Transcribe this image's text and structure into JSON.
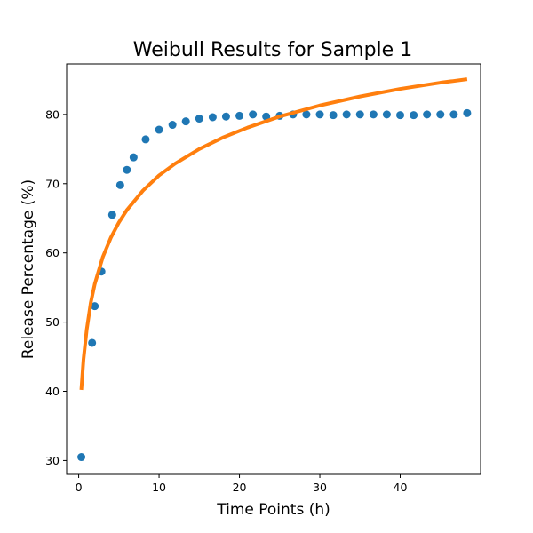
{
  "chart_data": {
    "type": "scatter",
    "title": "Weibull Results for Sample 1",
    "xlabel": "Time Points (h)",
    "ylabel": "Release Percentage (%)",
    "xlim": [
      -1.5,
      50.0
    ],
    "ylim": [
      28.0,
      87.3
    ],
    "xticks": [
      0,
      10,
      20,
      30,
      40
    ],
    "yticks": [
      30,
      40,
      50,
      60,
      70,
      80
    ],
    "grid": false,
    "series": [
      {
        "kind": "points",
        "color": "#1f77b4",
        "x": [
          0.33,
          1.67,
          2.0,
          2.83,
          4.17,
          5.17,
          6.0,
          6.83,
          8.33,
          10.0,
          11.67,
          13.33,
          15.0,
          16.67,
          18.33,
          20.0,
          21.67,
          23.33,
          25.0,
          26.67,
          28.33,
          30.0,
          31.67,
          33.33,
          35.0,
          36.67,
          38.33,
          40.0,
          41.67,
          43.33,
          45.0,
          46.67,
          48.33
        ],
        "y": [
          30.5,
          47.0,
          52.3,
          57.3,
          65.5,
          69.8,
          72.0,
          73.8,
          76.4,
          77.8,
          78.5,
          79.0,
          79.4,
          79.6,
          79.7,
          79.8,
          80.0,
          79.7,
          79.8,
          80.0,
          80.0,
          80.0,
          79.9,
          80.0,
          80.0,
          80.0,
          80.0,
          79.9,
          79.9,
          80.0,
          80.0,
          80.0,
          80.2
        ]
      },
      {
        "kind": "line",
        "color": "#ff7f0e",
        "x": [
          0.33,
          0.6,
          1.0,
          1.5,
          2.0,
          3.0,
          4.0,
          5.0,
          6.0,
          8.0,
          10.0,
          12.0,
          15.0,
          18.0,
          21.0,
          25.0,
          30.0,
          35.0,
          40.0,
          45.0,
          48.33
        ],
        "y": [
          40.2,
          44.6,
          48.9,
          52.8,
          55.5,
          59.4,
          62.2,
          64.4,
          66.2,
          69.0,
          71.2,
          72.9,
          75.0,
          76.7,
          78.1,
          79.7,
          81.3,
          82.6,
          83.7,
          84.6,
          85.1
        ]
      }
    ]
  }
}
